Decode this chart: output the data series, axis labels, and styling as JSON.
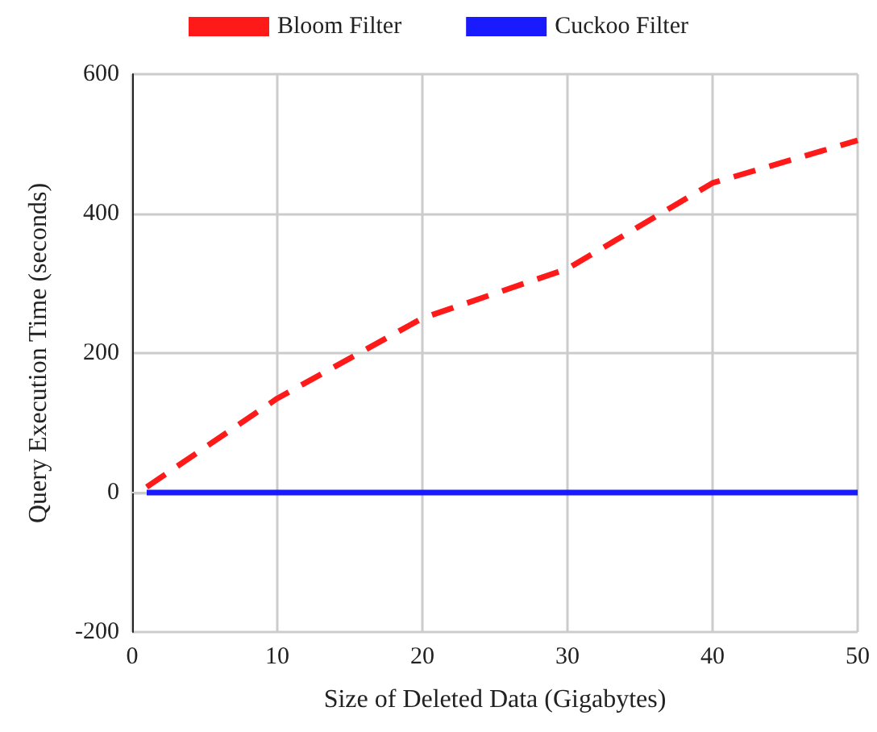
{
  "chart_data": {
    "type": "line",
    "xlabel": "Size of Deleted Data (Gigabytes)",
    "ylabel": "Query Execution Time (seconds)",
    "xlim": [
      0,
      50
    ],
    "xticks": [
      0,
      10,
      20,
      30,
      40,
      50
    ],
    "ylim": [
      -200,
      600
    ],
    "yticks": [
      -200,
      0,
      200,
      400,
      600
    ],
    "grid": true,
    "legend": "top",
    "marker": "none",
    "series": [
      {
        "name": "Bloom Filter",
        "color": "#ff1a1a",
        "line_style": "dashed",
        "x": [
          1,
          10,
          20,
          30,
          40,
          50
        ],
        "values": [
          8,
          135,
          250,
          321,
          444,
          505
        ]
      },
      {
        "name": "Cuckoo Filter",
        "color": "#1a1aff",
        "line_style": "solid",
        "x": [
          1,
          50
        ],
        "values": [
          0,
          0
        ]
      }
    ]
  }
}
